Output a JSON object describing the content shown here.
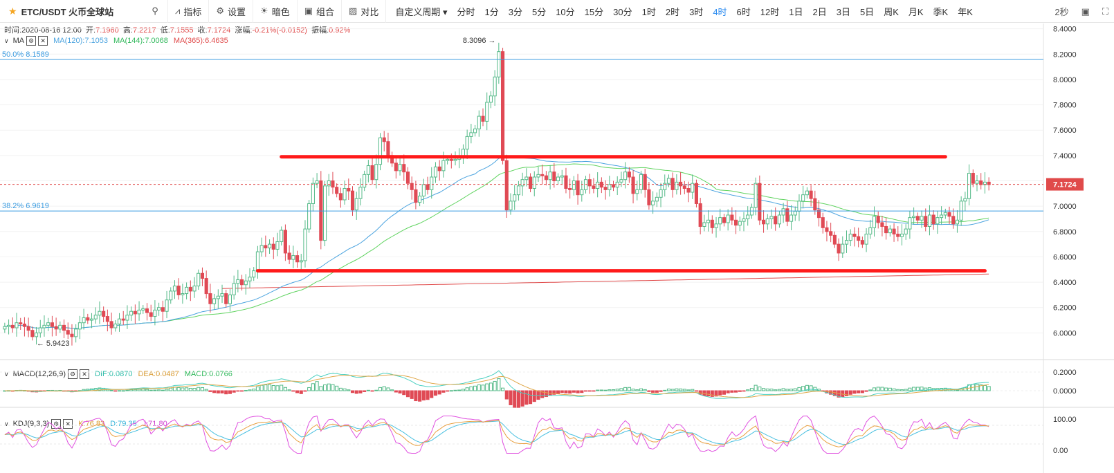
{
  "toolbar": {
    "symbol": "ETC/USDT 火币全球站",
    "buttons": [
      {
        "name": "indicator",
        "label": "指标",
        "icon": "chart-line-icon"
      },
      {
        "name": "settings",
        "label": "设置",
        "icon": "gear-icon"
      },
      {
        "name": "dark",
        "label": "暗色",
        "icon": "sun-icon"
      },
      {
        "name": "combo",
        "label": "组合",
        "icon": "layout-icon"
      },
      {
        "name": "compare",
        "label": "对比",
        "icon": "compare-icon"
      }
    ],
    "custom_period": "自定义周期",
    "periods": [
      "分时",
      "1分",
      "3分",
      "5分",
      "10分",
      "15分",
      "30分",
      "1时",
      "2时",
      "3时",
      "4时",
      "6时",
      "12时",
      "1日",
      "2日",
      "3日",
      "5日",
      "周K",
      "月K",
      "季K",
      "年K"
    ],
    "active_period": "4时",
    "interval_label": "2秒"
  },
  "ohlc": {
    "time_label": "时间:",
    "time": "2020-08-16 12:00",
    "open_label": "开:",
    "open": "7.1960",
    "high_label": "高:",
    "high": "7.2217",
    "low_label": "低:",
    "low": "7.1555",
    "close_label": "收:",
    "close": "7.1724",
    "change_label": "涨幅:",
    "change": "-0.21%(-0.0152)",
    "amp_label": "振幅:",
    "amp": "0.92%"
  },
  "ma_legend": {
    "name": "MA",
    "ma120": "MA(120):7.1053",
    "ma144": "MA(144):7.0068",
    "ma365": "MA(365):6.4635"
  },
  "macd_legend": {
    "name": "MACD(12,26,9)",
    "dif": "DIF:0.0870",
    "dea": "DEA:0.0487",
    "macd": "MACD:0.0766"
  },
  "kdj_legend": {
    "name": "KDJ(9,3,3)",
    "k": "K:76.83",
    "d": "D:79.35",
    "j": "J:71.80"
  },
  "colors": {
    "up": "#53b987",
    "down": "#e04a55",
    "ma120": "#4aa3df",
    "ma144": "#5fd35f",
    "ma365": "#e04a4a",
    "dif": "#4ad0c0",
    "dea": "#e0a84a",
    "k": "#e8a040",
    "d": "#4ac0e0",
    "j": "#e050e0",
    "annot": "#ff1a1a",
    "fib": "#3a9be0"
  },
  "chart_data": [
    {
      "type": "candlestick",
      "pane": "main",
      "y_ticks": [
        6.0,
        6.2,
        6.4,
        6.6,
        6.8,
        7.0,
        7.2,
        7.4,
        7.6,
        7.8,
        8.0,
        8.2,
        8.4
      ],
      "ylim": [
        5.8,
        8.42
      ],
      "y_tick_labels": [
        "6.0000",
        "6.2000",
        "6.4000",
        "6.6000",
        "6.8000",
        "7.0000",
        "7.2000",
        "7.4000",
        "7.6000",
        "7.8000",
        "8.0000",
        "8.2000",
        "8.4000"
      ],
      "last_price": 7.1724,
      "last_price_label": "7.1724",
      "high_marker": {
        "value": 8.3096,
        "label": "8.3096"
      },
      "low_marker": {
        "value": 5.9423,
        "label": "5.9423"
      },
      "fib_levels": [
        {
          "label": "50.0% 8.1589",
          "value": 8.1589
        },
        {
          "label": "38.2% 6.9619",
          "value": 6.9619
        }
      ],
      "annotation_lines": [
        {
          "value": 7.39,
          "from_index": 70,
          "to_index": 238
        },
        {
          "value": 6.49,
          "from_index": 64,
          "to_index": 248
        }
      ],
      "candles_close": [
        6.05,
        6.06,
        6.04,
        6.08,
        6.07,
        6.05,
        6.02,
        5.97,
        6.0,
        6.04,
        6.06,
        6.08,
        6.05,
        6.03,
        6.06,
        6.02,
        5.99,
        5.97,
        6.03,
        6.08,
        6.12,
        6.1,
        6.11,
        6.14,
        6.17,
        6.13,
        6.09,
        6.04,
        6.07,
        6.11,
        6.1,
        6.14,
        6.17,
        6.15,
        6.18,
        6.19,
        6.16,
        6.13,
        6.18,
        6.2,
        6.17,
        6.26,
        6.33,
        6.37,
        6.3,
        6.31,
        6.36,
        6.33,
        6.37,
        6.47,
        6.43,
        6.31,
        6.23,
        6.27,
        6.29,
        6.31,
        6.23,
        6.3,
        6.39,
        6.42,
        6.38,
        6.41,
        6.44,
        6.49,
        6.64,
        6.69,
        6.67,
        6.7,
        6.66,
        6.72,
        6.81,
        6.63,
        6.58,
        6.61,
        6.56,
        6.57,
        6.82,
        7.02,
        7.18,
        7.2,
        6.73,
        7.16,
        7.2,
        7.15,
        7.1,
        7.05,
        7.14,
        7.12,
        6.97,
        7.06,
        7.15,
        7.25,
        7.32,
        7.21,
        7.33,
        7.54,
        7.51,
        7.4,
        7.34,
        7.28,
        7.33,
        7.27,
        7.18,
        7.13,
        7.03,
        7.08,
        7.17,
        7.13,
        7.23,
        7.31,
        7.28,
        7.36,
        7.37,
        7.36,
        7.37,
        7.38,
        7.45,
        7.55,
        7.58,
        7.61,
        7.71,
        7.67,
        7.82,
        7.87,
        8.02,
        8.22,
        7.36,
        6.97,
        7.04,
        7.09,
        7.16,
        7.21,
        7.23,
        7.14,
        7.23,
        7.25,
        7.24,
        7.21,
        7.27,
        7.2,
        7.23,
        7.24,
        7.14,
        7.13,
        7.2,
        7.09,
        7.13,
        7.21,
        7.16,
        7.14,
        7.19,
        7.15,
        7.13,
        7.17,
        7.15,
        7.19,
        7.21,
        7.27,
        7.23,
        7.1,
        7.13,
        7.25,
        7.13,
        7.01,
        7.04,
        7.07,
        7.13,
        7.18,
        7.22,
        7.13,
        7.19,
        7.16,
        7.14,
        7.11,
        7.18,
        7.02,
        6.84,
        6.87,
        6.89,
        6.83,
        6.86,
        6.91,
        6.87,
        6.93,
        6.89,
        6.85,
        6.88,
        6.9,
        6.93,
        6.99,
        7.18,
        6.89,
        6.86,
        6.9,
        6.92,
        6.86,
        6.93,
        6.98,
        6.88,
        6.93,
        6.96,
        7.04,
        7.09,
        7.12,
        7.06,
        6.97,
        6.91,
        6.83,
        6.8,
        6.77,
        6.7,
        6.63,
        6.7,
        6.73,
        6.78,
        6.76,
        6.73,
        6.7,
        6.78,
        6.83,
        6.92,
        6.87,
        6.84,
        6.79,
        6.82,
        6.78,
        6.76,
        6.78,
        6.82,
        6.91,
        6.92,
        6.89,
        6.92,
        6.84,
        6.93,
        6.86,
        6.91,
        6.93,
        6.95,
        6.92,
        6.86,
        6.89,
        7.04,
        7.06,
        7.26,
        7.18,
        7.2,
        7.17,
        7.19,
        7.17
      ]
    },
    {
      "type": "bar",
      "pane": "macd",
      "y_ticks": [
        0.0,
        0.2
      ],
      "y_tick_labels": [
        "0.0000",
        "0.2000"
      ]
    },
    {
      "type": "line",
      "pane": "kdj",
      "y_ticks": [
        0,
        100
      ],
      "y_tick_labels": [
        "0.00",
        "100.00"
      ],
      "ref_lines": [
        20,
        80
      ]
    }
  ]
}
